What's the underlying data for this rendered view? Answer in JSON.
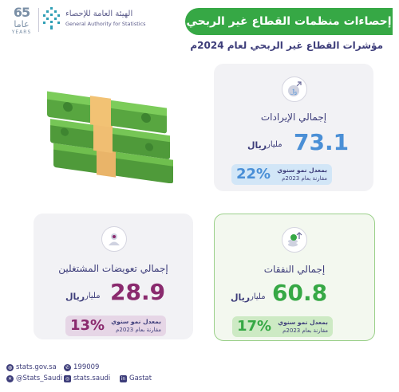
{
  "logos": {
    "anniversary_number": "65",
    "anniversary_arabic": "عاما",
    "anniversary_english": "YEARS",
    "gastat_arabic": "الهيئة العامة للإحصاء",
    "gastat_english": "General Authority for Statistics"
  },
  "header": {
    "title": "إحصاءات منظمات القطاع غير الربحي",
    "subtitle": "مؤشرات القطاع غير الربحي لعام 2024م"
  },
  "cards": {
    "revenues": {
      "label": "إجمالي الإيرادات",
      "value": "73.1",
      "unit": "مليار",
      "currency": "ريال",
      "growth_pct": "22%",
      "growth_line1": "بمعدل نمو سنوي",
      "growth_line2": "مقارنة بعام 2023م",
      "value_color": "#4a8fd6",
      "box_color": "#d2e6f7"
    },
    "employee_compensation": {
      "label": "إجمالي تعويضات المشتغلين",
      "value": "28.9",
      "unit": "مليار",
      "currency": "ريال",
      "growth_pct": "13%",
      "growth_line1": "بمعدل نمو سنوي",
      "growth_line2": "مقارنة بعام 2023م",
      "value_color": "#8a2a6e",
      "box_color": "#e6d6e6"
    },
    "expenditures": {
      "label": "إجمالي النفقات",
      "value": "60.8",
      "unit": "مليار",
      "currency": "ريال",
      "growth_pct": "17%",
      "growth_line1": "بمعدل نمو سنوي",
      "growth_line2": "مقارنة بعام 2023م",
      "value_color": "#36a845",
      "box_color": "#cdeac4"
    }
  },
  "footer": {
    "website": "stats.gov.sa",
    "phone": "199009",
    "twitter": "@Stats_Saudi",
    "instagram": "stats.saudi",
    "linkedin": "Gastat"
  },
  "colors": {
    "brand_green": "#36a845",
    "brand_navy": "#3d3d7a"
  },
  "icons": [
    "money-stack-illustration",
    "revenue-icon",
    "expenditure-icon",
    "compensation-icon",
    "globe-icon",
    "phone-icon",
    "twitter-icon",
    "instagram-icon",
    "linkedin-icon"
  ]
}
